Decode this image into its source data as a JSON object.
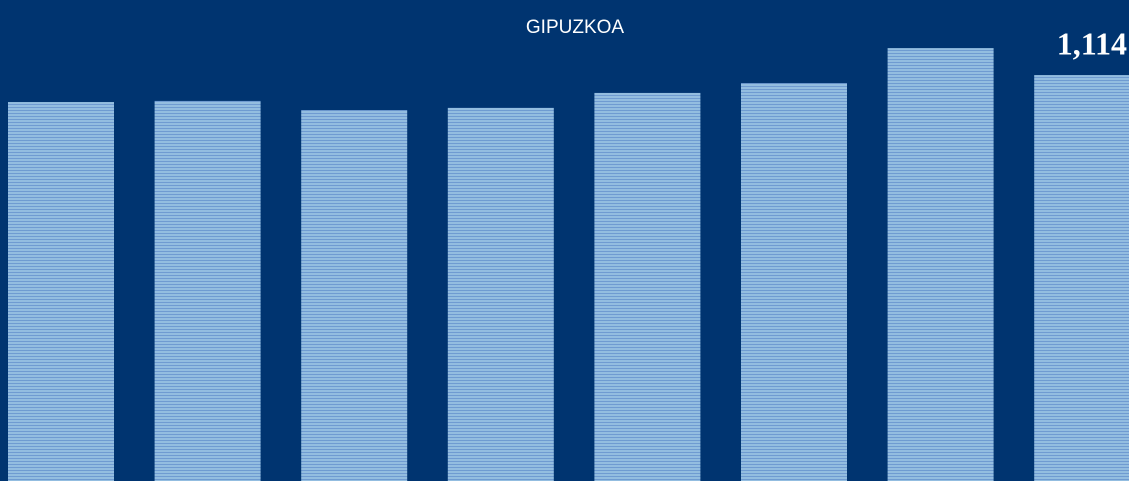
{
  "chart_data": {
    "type": "bar",
    "title": "GIPUZKOA",
    "categories": [
      null,
      null,
      null,
      null,
      null,
      null,
      null,
      null
    ],
    "values": [
      1040,
      1043,
      1018,
      1024,
      1065,
      1092,
      1188,
      1114
    ],
    "value_labels": [
      null,
      null,
      null,
      null,
      null,
      null,
      null,
      "1,114"
    ],
    "color": "#8fb6dd",
    "ylim": [
      0,
      1320
    ]
  }
}
